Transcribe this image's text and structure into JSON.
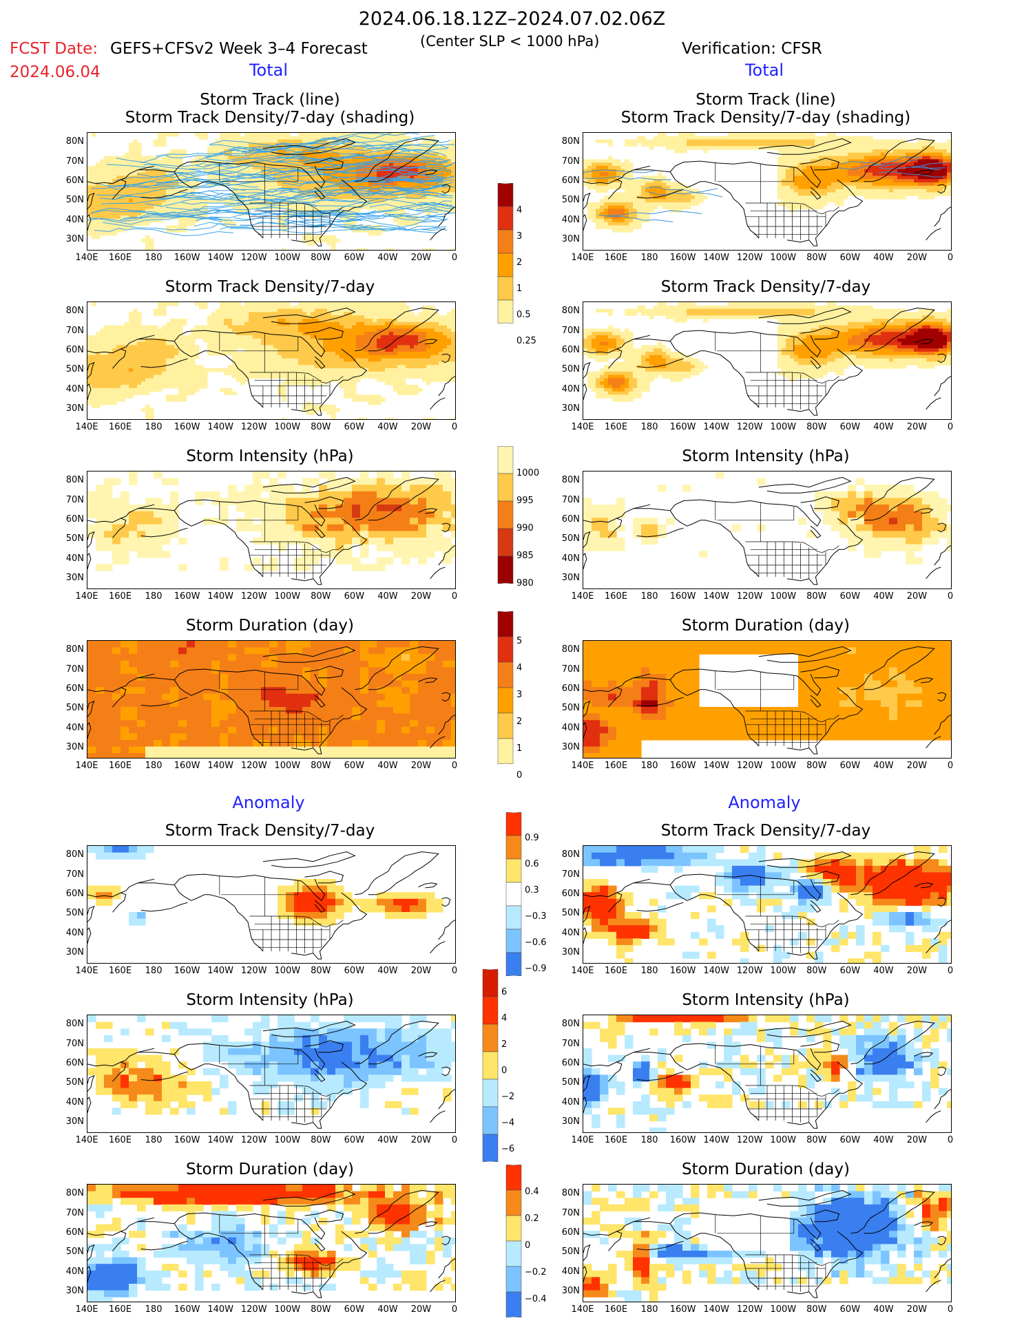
{
  "header": {
    "title": "2024.06.18.12Z–2024.07.02.06Z",
    "fcst_label": "FCST Date:",
    "fcst_date": "2024.06.04",
    "model_label": "GEFS+CFSv2 Week 3–4 Forecast",
    "center_label": "(Center SLP < 1000 hPa)",
    "verification_label": "Verification: CFSR"
  },
  "sections": {
    "total": "Total",
    "anomaly": "Anomaly"
  },
  "axes": {
    "lat_labels": [
      "80N",
      "70N",
      "60N",
      "50N",
      "40N",
      "30N"
    ],
    "lon_labels": [
      "140E",
      "160E",
      "180",
      "160W",
      "140W",
      "120W",
      "100W",
      "80W",
      "60W",
      "40W",
      "20W",
      "0"
    ]
  },
  "panel_titles": {
    "track": [
      "Storm Track (line)",
      "Storm Track Density/7-day (shading)"
    ],
    "density": "Storm Track Density/7-day",
    "intensity": "Storm Intensity (hPa)",
    "duration": "Storm Duration (day)"
  },
  "colorbars": {
    "density": {
      "labels": [
        "4",
        "3",
        "2",
        "1",
        "0.5",
        "0.25"
      ],
      "colors": [
        "#a00000",
        "#e03010",
        "#f57f17",
        "#ffa000",
        "#ffc94a",
        "#fff1a0"
      ]
    },
    "intensity": {
      "labels": [
        "1000",
        "995",
        "990",
        "985",
        "980"
      ],
      "colors": [
        "#fff5b0",
        "#ffc94a",
        "#f57f17",
        "#d63a12",
        "#9a0000"
      ]
    },
    "duration": {
      "labels": [
        "5",
        "4",
        "3",
        "2",
        "1",
        "0"
      ],
      "colors": [
        "#a00000",
        "#e03010",
        "#f57f17",
        "#ffa000",
        "#ffc94a",
        "#fff1a0"
      ]
    },
    "density_anom": {
      "labels": [
        "0.9",
        "0.6",
        "0.3",
        "−0.3",
        "−0.6",
        "−0.9"
      ],
      "colors": [
        "#ff3300",
        "#f58a1a",
        "#ffe56a",
        "#ffffff",
        "#b8eaff",
        "#7cc4ff",
        "#3a7ff0"
      ]
    },
    "intensity_anom": {
      "labels": [
        "6",
        "4",
        "2",
        "0",
        "−2",
        "−4",
        "−6"
      ],
      "colors": [
        "#d61d00",
        "#ff3300",
        "#f58a1a",
        "#ffe56a",
        "#b8eaff",
        "#7cc4ff",
        "#3a7ff0"
      ]
    },
    "duration_anom": {
      "labels": [
        "0.4",
        "0.2",
        "0",
        "−0.2",
        "−0.4"
      ],
      "colors": [
        "#ff3300",
        "#f58a1a",
        "#ffe56a",
        "#b8eaff",
        "#7cc4ff",
        "#3a7ff0"
      ]
    }
  }
}
